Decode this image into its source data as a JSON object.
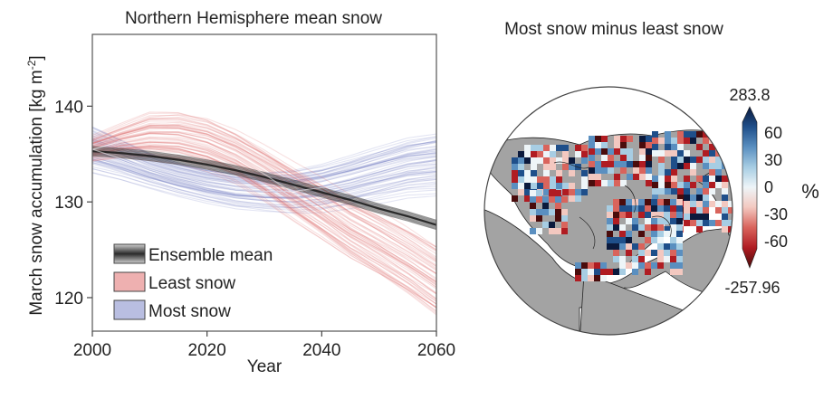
{
  "chart_data": [
    {
      "type": "line",
      "title": "Northern Hemisphere mean snow",
      "xlabel": "Year",
      "ylabel": "March snow accumulation [kg m",
      "ylabel_sup": "-2",
      "ylabel_close": "]",
      "xlim": [
        2000,
        2060
      ],
      "ylim": [
        116.5,
        147.5
      ],
      "xticks": [
        "2000",
        "2020",
        "2040",
        "2060"
      ],
      "yticks": [
        "120",
        "130",
        "140"
      ],
      "legend_position": "bottom-left",
      "legend": [
        {
          "label": "Ensemble mean",
          "color": "#333333"
        },
        {
          "label": "Least snow",
          "color": "#e07070"
        },
        {
          "label": "Most snow",
          "color": "#8088c8"
        }
      ],
      "series": [
        {
          "name": "Ensemble mean",
          "color": "#3a3a3a",
          "x": [
            2000,
            2005,
            2010,
            2015,
            2020,
            2025,
            2030,
            2035,
            2040,
            2045,
            2050,
            2055,
            2060
          ],
          "y": [
            135.3,
            135.1,
            134.8,
            134.4,
            133.9,
            133.3,
            132.6,
            131.8,
            131.0,
            130.2,
            129.3,
            128.5,
            127.6
          ]
        },
        {
          "name": "Least snow",
          "color": "#e07070",
          "x": [
            2000,
            2005,
            2010,
            2015,
            2020,
            2025,
            2030,
            2035,
            2040,
            2045,
            2050,
            2055,
            2060
          ],
          "y": [
            135.5,
            136.3,
            136.8,
            136.7,
            136.0,
            134.7,
            132.9,
            130.9,
            129.0,
            127.0,
            125.3,
            123.5,
            121.5
          ],
          "spread": [
            1.5,
            2.0,
            2.8,
            3.0,
            3.1,
            3.1,
            3.2,
            3.4,
            3.6,
            3.8,
            4.0,
            4.2,
            4.4
          ]
        },
        {
          "name": "Most snow",
          "color": "#8088c8",
          "x": [
            2000,
            2005,
            2010,
            2015,
            2020,
            2025,
            2030,
            2035,
            2040,
            2045,
            2050,
            2055,
            2060
          ],
          "y": [
            135.5,
            134.5,
            133.4,
            132.5,
            131.8,
            131.3,
            131.1,
            131.1,
            131.5,
            132.2,
            133.0,
            133.8,
            134.2
          ],
          "spread": [
            3.0,
            2.6,
            2.3,
            2.2,
            2.2,
            2.3,
            2.4,
            2.6,
            2.8,
            3.0,
            3.2,
            3.4,
            3.6
          ]
        }
      ]
    },
    {
      "type": "heatmap",
      "title": "Most snow minus least snow",
      "projection": "north polar stereographic",
      "colorbar": {
        "max_label": "283.8",
        "min_label": "-257.96",
        "tick_labels": [
          "60",
          "30",
          "0",
          "-30",
          "-60"
        ],
        "tick_values": [
          60,
          30,
          0,
          -30,
          -60
        ],
        "unit": "%",
        "colors": [
          "#0b1a3d",
          "#1f4f8a",
          "#5a8fc0",
          "#a7cde3",
          "#eef5f8",
          "#f3c8c0",
          "#d9645c",
          "#b01c22",
          "#4a0c0c"
        ]
      },
      "land_color": "#a3a3a3",
      "ocean_color": "#ffffff"
    }
  ]
}
